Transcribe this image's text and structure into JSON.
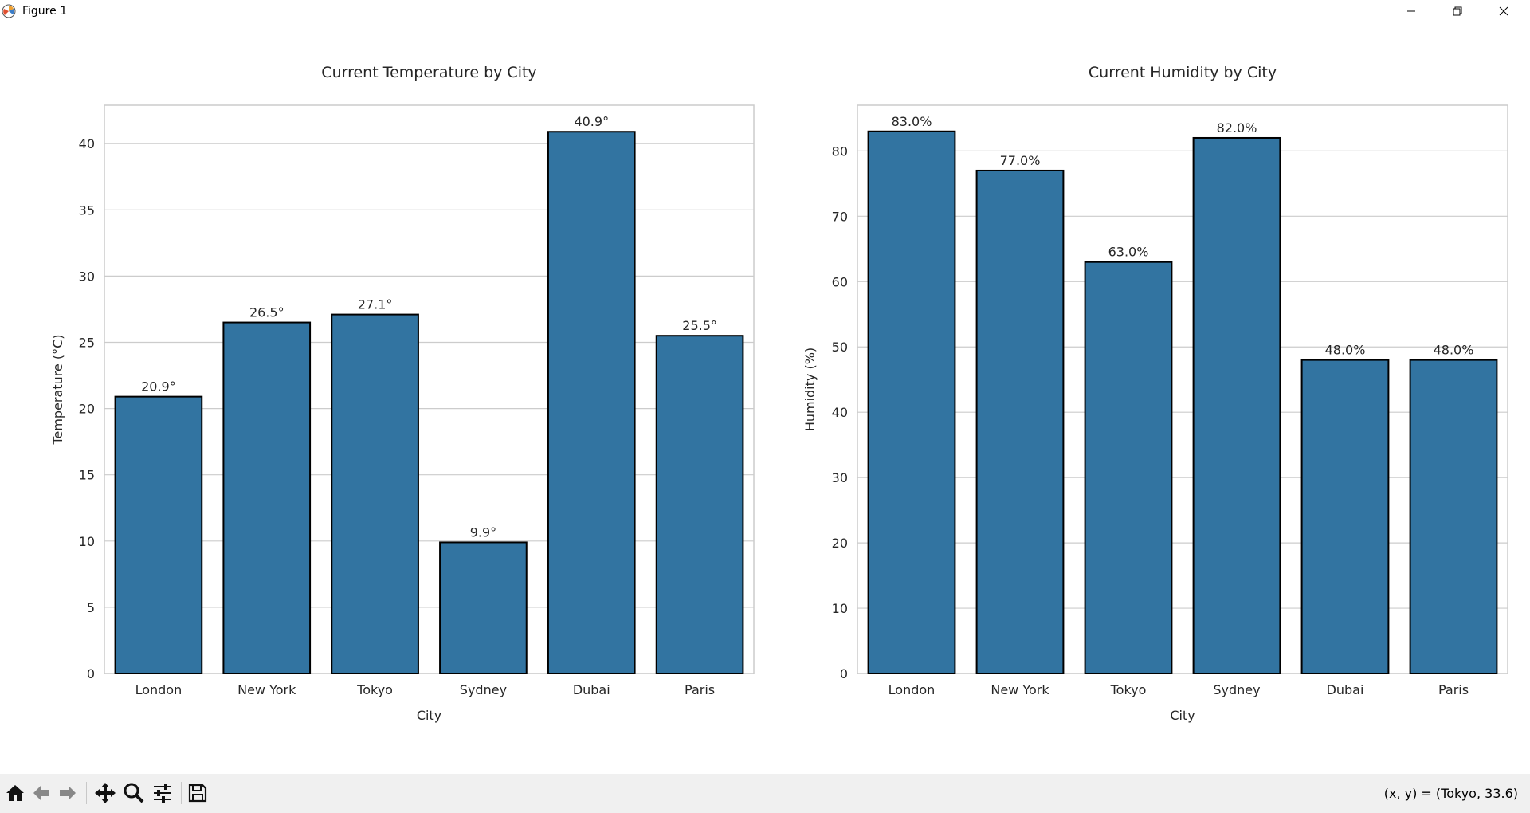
{
  "window": {
    "title": "Figure 1"
  },
  "toolbar": {
    "tools": [
      "home-icon",
      "back-icon",
      "forward-icon",
      "pan-icon",
      "zoom-icon",
      "configure-icon",
      "save-icon"
    ],
    "coords": "(x, y) = (Tokyo, 33.6)"
  },
  "colors": {
    "bar": "#3274a1",
    "grid": "#cccccc",
    "axes_edge": "#cccccc"
  },
  "chart_data": [
    {
      "type": "bar",
      "title": "Current Temperature by City",
      "xlabel": "City",
      "ylabel": "Temperature (°C)",
      "categories": [
        "London",
        "New York",
        "Tokyo",
        "Sydney",
        "Dubai",
        "Paris"
      ],
      "values": [
        20.9,
        26.5,
        27.1,
        9.9,
        40.9,
        25.5
      ],
      "labels": [
        "20.9°",
        "26.5°",
        "27.1°",
        "9.9°",
        "40.9°",
        "25.5°"
      ],
      "ylim": [
        0,
        42.9
      ],
      "yticks": [
        0,
        5,
        10,
        15,
        20,
        25,
        30,
        35,
        40
      ],
      "grid": true
    },
    {
      "type": "bar",
      "title": "Current Humidity by City",
      "xlabel": "City",
      "ylabel": "Humidity (%)",
      "categories": [
        "London",
        "New York",
        "Tokyo",
        "Sydney",
        "Dubai",
        "Paris"
      ],
      "values": [
        83.0,
        77.0,
        63.0,
        82.0,
        48.0,
        48.0
      ],
      "labels": [
        "83.0%",
        "77.0%",
        "63.0%",
        "82.0%",
        "48.0%",
        "48.0%"
      ],
      "ylim": [
        0,
        87
      ],
      "yticks": [
        0,
        10,
        20,
        30,
        40,
        50,
        60,
        70,
        80
      ],
      "grid": true
    }
  ]
}
